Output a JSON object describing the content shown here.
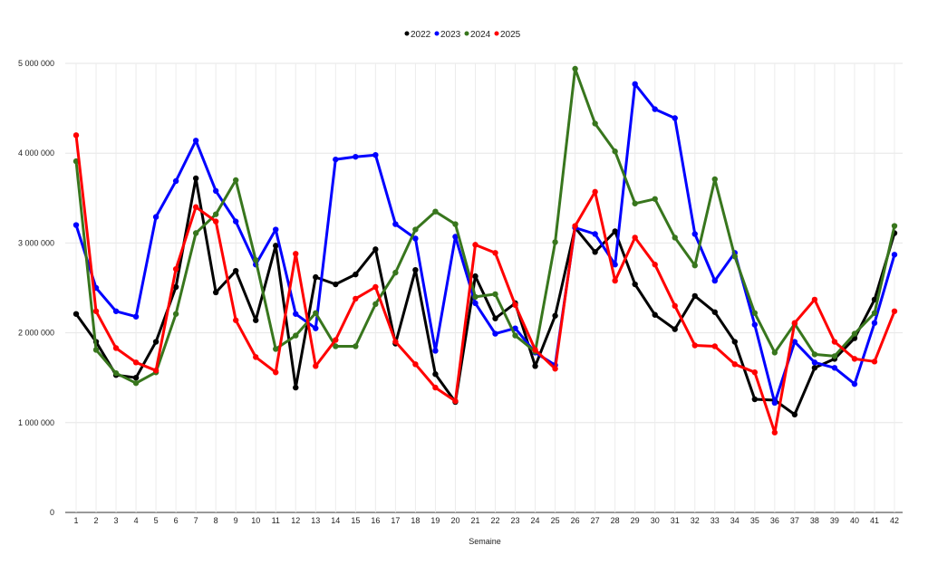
{
  "chart_data": {
    "type": "line",
    "title": "",
    "xlabel": "Semaine",
    "ylabel": "",
    "ylim": [
      0,
      5000000
    ],
    "yticks": [
      0,
      1000000,
      2000000,
      3000000,
      4000000,
      5000000
    ],
    "ytick_labels": [
      "0",
      "1 000 000",
      "2 000 000",
      "3 000 000",
      "4 000 000",
      "5 000 000"
    ],
    "grid": true,
    "legend_position": "top-center",
    "x": [
      1,
      2,
      3,
      4,
      5,
      6,
      7,
      8,
      9,
      10,
      11,
      12,
      13,
      14,
      15,
      16,
      17,
      18,
      19,
      20,
      21,
      22,
      23,
      24,
      25,
      26,
      27,
      28,
      29,
      30,
      31,
      32,
      33,
      34,
      35,
      36,
      37,
      38,
      39,
      40,
      41,
      42
    ],
    "series": [
      {
        "name": "2022",
        "color": "#000000",
        "values": [
          2210000,
          1900000,
          1530000,
          1500000,
          1900000,
          2510000,
          3720000,
          2450000,
          2690000,
          2140000,
          2970000,
          1390000,
          2620000,
          2540000,
          2650000,
          2930000,
          1880000,
          2700000,
          1540000,
          1230000,
          2630000,
          2160000,
          2330000,
          1630000,
          2190000,
          3170000,
          2900000,
          3130000,
          2540000,
          2200000,
          2040000,
          2410000,
          2230000,
          1900000,
          1260000,
          1250000,
          1090000,
          1610000,
          1710000,
          1940000,
          2370000,
          3110000
        ]
      },
      {
        "name": "2023",
        "color": "#0000ff",
        "values": [
          3200000,
          2500000,
          2240000,
          2180000,
          3290000,
          3690000,
          4140000,
          3580000,
          3240000,
          2760000,
          3150000,
          2210000,
          2050000,
          3930000,
          3960000,
          3980000,
          3210000,
          3050000,
          1800000,
          3070000,
          2330000,
          1990000,
          2050000,
          1780000,
          1640000,
          3170000,
          3100000,
          2760000,
          4770000,
          4490000,
          4390000,
          3100000,
          2580000,
          2890000,
          2090000,
          1220000,
          1900000,
          1670000,
          1610000,
          1430000,
          2110000,
          2870000
        ]
      },
      {
        "name": "2024",
        "color": "#38761d",
        "values": [
          3910000,
          1810000,
          1550000,
          1440000,
          1560000,
          2210000,
          3110000,
          3320000,
          3700000,
          2810000,
          1820000,
          1970000,
          2220000,
          1850000,
          1850000,
          2320000,
          2670000,
          3150000,
          3350000,
          3210000,
          2400000,
          2430000,
          1970000,
          1790000,
          3010000,
          4940000,
          4330000,
          4020000,
          3440000,
          3490000,
          3060000,
          2750000,
          3710000,
          2850000,
          2220000,
          1780000,
          2100000,
          1760000,
          1740000,
          1990000,
          2220000,
          3190000
        ]
      },
      {
        "name": "2025",
        "color": "#ff0000",
        "values": [
          4200000,
          2240000,
          1830000,
          1670000,
          1580000,
          2710000,
          3400000,
          3240000,
          2140000,
          1730000,
          1560000,
          2880000,
          1630000,
          1920000,
          2380000,
          2510000,
          1900000,
          1650000,
          1390000,
          1240000,
          2980000,
          2890000,
          2310000,
          1810000,
          1600000,
          3190000,
          3570000,
          2580000,
          3060000,
          2760000,
          2300000,
          1860000,
          1850000,
          1650000,
          1560000,
          890000,
          2110000,
          2370000,
          1900000,
          1710000,
          1680000,
          2240000
        ]
      }
    ]
  }
}
